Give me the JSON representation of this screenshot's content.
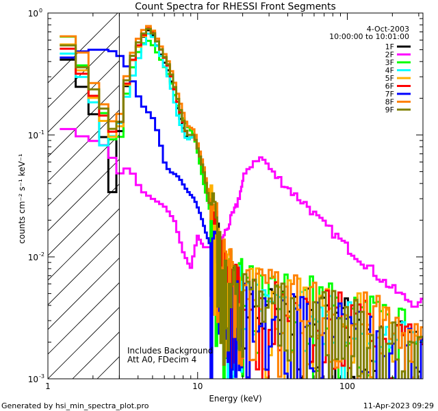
{
  "chart_data": {
    "type": "line",
    "title": "Count Spectra for RHESSI Front Segments",
    "xlabel": "Energy (keV)",
    "ylabel": "counts cm⁻² s⁻¹ keV⁻¹",
    "xscale": "log",
    "yscale": "log",
    "xlim": [
      1,
      320
    ],
    "ylim": [
      0.001,
      1.0
    ],
    "x_tick_labels": [
      {
        "v": 1,
        "t": "1"
      },
      {
        "v": 10,
        "t": "10"
      },
      {
        "v": 100,
        "t": "100"
      }
    ],
    "y_tick_labels": [
      {
        "v": 1,
        "t": "10",
        "e": "0"
      },
      {
        "v": 0.1,
        "t": "10",
        "e": "-1"
      },
      {
        "v": 0.01,
        "t": "10",
        "e": "-2"
      },
      {
        "v": 0.001,
        "t": "10",
        "e": "-3"
      }
    ],
    "date": "4-Oct-2003",
    "time_range": "10:00:00 to 10:01:00",
    "hatch_region": [
      1,
      3
    ],
    "annotations": [
      "Includes Background",
      "Att A0, FDecim 4"
    ],
    "legend_position": "top-right",
    "series": [
      {
        "name": "1F",
        "color": "#000000",
        "points": [
          [
            1.3,
            0.45
          ],
          [
            1.6,
            0.3
          ],
          [
            1.8,
            0.2
          ],
          [
            2.2,
            0.12
          ],
          [
            2.5,
            0.08
          ],
          [
            2.7,
            0.033
          ],
          [
            3.0,
            0.1
          ],
          [
            3.5,
            0.35
          ],
          [
            4.2,
            0.6
          ],
          [
            4.8,
            0.75
          ],
          [
            5.5,
            0.5
          ],
          [
            6.5,
            0.32
          ],
          [
            7.5,
            0.15
          ],
          [
            8.5,
            0.09
          ],
          [
            9.5,
            0.1
          ],
          [
            11,
            0.05
          ],
          [
            12,
            0.028
          ],
          [
            13.5,
            0.015
          ],
          [
            15,
            0.006
          ],
          [
            18,
            0.005
          ],
          [
            22,
            0.004
          ],
          [
            28,
            0.0035
          ],
          [
            35,
            0.003
          ],
          [
            45,
            0.0032
          ],
          [
            60,
            0.003
          ],
          [
            75,
            0.0028
          ],
          [
            90,
            0.003
          ],
          [
            120,
            0.0025
          ],
          [
            150,
            0.0022
          ],
          [
            200,
            0.0018
          ],
          [
            260,
            0.0015
          ],
          [
            310,
            0.0015
          ]
        ],
        "noise": true
      },
      {
        "name": "2F",
        "color": "#ff00ff",
        "points": [
          [
            1.3,
            0.115
          ],
          [
            1.6,
            0.1
          ],
          [
            2.0,
            0.09
          ],
          [
            2.5,
            0.08
          ],
          [
            3.0,
            0.048
          ],
          [
            3.5,
            0.055
          ],
          [
            4.2,
            0.035
          ],
          [
            5.0,
            0.03
          ],
          [
            6.0,
            0.026
          ],
          [
            7.0,
            0.02
          ],
          [
            8.0,
            0.011
          ],
          [
            9.0,
            0.008
          ],
          [
            10,
            0.015
          ],
          [
            11,
            0.012
          ],
          [
            13,
            0.012
          ],
          [
            15,
            0.015
          ],
          [
            18,
            0.025
          ],
          [
            20,
            0.04
          ],
          [
            22,
            0.055
          ],
          [
            25,
            0.065
          ],
          [
            28,
            0.062
          ],
          [
            32,
            0.048
          ],
          [
            38,
            0.04
          ],
          [
            45,
            0.032
          ],
          [
            55,
            0.026
          ],
          [
            65,
            0.02
          ],
          [
            80,
            0.016
          ],
          [
            100,
            0.012
          ],
          [
            130,
            0.009
          ],
          [
            160,
            0.007
          ],
          [
            200,
            0.0055
          ],
          [
            250,
            0.0045
          ],
          [
            300,
            0.004
          ],
          [
            320,
            0.0042
          ]
        ],
        "noise": false
      },
      {
        "name": "3F",
        "color": "#00ff00",
        "points": [
          [
            1.3,
            0.7
          ],
          [
            1.6,
            0.45
          ],
          [
            1.8,
            0.3
          ],
          [
            2.2,
            0.2
          ],
          [
            2.5,
            0.12
          ],
          [
            2.8,
            0.08
          ],
          [
            3.0,
            0.09
          ],
          [
            3.5,
            0.3
          ],
          [
            4.2,
            0.55
          ],
          [
            4.8,
            0.6
          ],
          [
            5.5,
            0.45
          ],
          [
            6.5,
            0.3
          ],
          [
            7.5,
            0.16
          ],
          [
            8.5,
            0.12
          ],
          [
            9.5,
            0.1
          ],
          [
            11,
            0.04
          ],
          [
            12,
            0.025
          ],
          [
            13.5,
            0.015
          ],
          [
            15,
            0.007
          ],
          [
            18,
            0.006
          ],
          [
            22,
            0.005
          ],
          [
            28,
            0.004
          ],
          [
            35,
            0.0045
          ],
          [
            45,
            0.0042
          ],
          [
            60,
            0.004
          ],
          [
            75,
            0.0035
          ],
          [
            90,
            0.0035
          ],
          [
            120,
            0.003
          ],
          [
            150,
            0.0028
          ],
          [
            200,
            0.0024
          ],
          [
            260,
            0.002
          ],
          [
            310,
            0.002
          ]
        ],
        "noise": true
      },
      {
        "name": "4F",
        "color": "#00ffff",
        "points": [
          [
            1.3,
            0.5
          ],
          [
            1.6,
            0.35
          ],
          [
            1.8,
            0.25
          ],
          [
            2.2,
            0.15
          ],
          [
            2.5,
            0.05
          ],
          [
            2.7,
            0.1
          ],
          [
            3.0,
            0.12
          ],
          [
            3.5,
            0.25
          ],
          [
            4.2,
            0.5
          ],
          [
            4.8,
            0.72
          ],
          [
            5.5,
            0.5
          ],
          [
            6.5,
            0.28
          ],
          [
            7.5,
            0.13
          ],
          [
            8.5,
            0.09
          ],
          [
            9.5,
            0.1
          ],
          [
            11,
            0.05
          ],
          [
            12,
            0.028
          ],
          [
            13.5,
            0.012
          ],
          [
            15,
            0.006
          ],
          [
            18,
            0.005
          ],
          [
            22,
            0.004
          ],
          [
            28,
            0.0035
          ],
          [
            35,
            0.003
          ],
          [
            45,
            0.0034
          ],
          [
            60,
            0.003
          ],
          [
            75,
            0.0028
          ],
          [
            90,
            0.0028
          ],
          [
            120,
            0.0025
          ],
          [
            150,
            0.0022
          ],
          [
            200,
            0.0018
          ],
          [
            260,
            0.0016
          ],
          [
            310,
            0.0014
          ]
        ],
        "noise": true
      },
      {
        "name": "5F",
        "color": "#ffb000",
        "points": [
          [
            1.3,
            0.6
          ],
          [
            1.6,
            0.4
          ],
          [
            1.8,
            0.28
          ],
          [
            2.2,
            0.16
          ],
          [
            2.5,
            0.11
          ],
          [
            2.8,
            0.09
          ],
          [
            3.0,
            0.11
          ],
          [
            3.5,
            0.35
          ],
          [
            4.2,
            0.6
          ],
          [
            4.8,
            0.78
          ],
          [
            5.5,
            0.55
          ],
          [
            6.5,
            0.35
          ],
          [
            7.5,
            0.18
          ],
          [
            8.5,
            0.1
          ],
          [
            9.5,
            0.1
          ],
          [
            11,
            0.05
          ],
          [
            12,
            0.03
          ],
          [
            13.5,
            0.016
          ],
          [
            15,
            0.007
          ],
          [
            18,
            0.006
          ],
          [
            22,
            0.005
          ],
          [
            28,
            0.0042
          ],
          [
            35,
            0.004
          ],
          [
            45,
            0.0038
          ],
          [
            60,
            0.0035
          ],
          [
            75,
            0.0032
          ],
          [
            90,
            0.003
          ],
          [
            120,
            0.0028
          ],
          [
            150,
            0.0025
          ],
          [
            200,
            0.0022
          ],
          [
            260,
            0.0018
          ],
          [
            310,
            0.0016
          ]
        ],
        "noise": true
      },
      {
        "name": "6F",
        "color": "#ff0000",
        "points": [
          [
            1.3,
            0.55
          ],
          [
            1.6,
            0.38
          ],
          [
            1.8,
            0.26
          ],
          [
            2.2,
            0.18
          ],
          [
            2.5,
            0.12
          ],
          [
            2.8,
            0.1
          ],
          [
            3.0,
            0.12
          ],
          [
            3.5,
            0.35
          ],
          [
            4.2,
            0.62
          ],
          [
            4.8,
            0.78
          ],
          [
            5.5,
            0.55
          ],
          [
            6.5,
            0.35
          ],
          [
            7.5,
            0.17
          ],
          [
            8.5,
            0.1
          ],
          [
            9.5,
            0.1
          ],
          [
            11,
            0.05
          ],
          [
            12,
            0.028
          ],
          [
            13.5,
            0.014
          ],
          [
            15,
            0.007
          ],
          [
            18,
            0.005
          ],
          [
            22,
            0.0045
          ],
          [
            28,
            0.004
          ],
          [
            35,
            0.0038
          ],
          [
            45,
            0.0035
          ],
          [
            60,
            0.0032
          ],
          [
            75,
            0.003
          ],
          [
            90,
            0.003
          ],
          [
            120,
            0.0026
          ],
          [
            150,
            0.0024
          ],
          [
            200,
            0.002
          ],
          [
            260,
            0.0017
          ],
          [
            310,
            0.0015
          ]
        ],
        "noise": true
      },
      {
        "name": "7F",
        "color": "#0000ff",
        "points": [
          [
            1.3,
            0.42
          ],
          [
            1.6,
            0.48
          ],
          [
            2.0,
            0.5
          ],
          [
            2.5,
            0.5
          ],
          [
            2.8,
            0.48
          ],
          [
            3.2,
            0.42
          ],
          [
            3.6,
            0.3
          ],
          [
            4.2,
            0.18
          ],
          [
            5.0,
            0.14
          ],
          [
            5.5,
            0.1
          ],
          [
            6.0,
            0.06
          ],
          [
            6.5,
            0.05
          ],
          [
            7.0,
            0.048
          ],
          [
            7.5,
            0.045
          ],
          [
            8.5,
            0.035
          ],
          [
            9.5,
            0.03
          ],
          [
            10.5,
            0.022
          ],
          [
            11.5,
            0.015
          ],
          [
            13,
            0.01
          ],
          [
            15,
            0.006
          ],
          [
            18,
            0.004
          ],
          [
            22,
            0.0035
          ],
          [
            28,
            0.003
          ],
          [
            35,
            0.0028
          ],
          [
            45,
            0.003
          ],
          [
            60,
            0.0028
          ],
          [
            75,
            0.0025
          ],
          [
            90,
            0.0025
          ],
          [
            120,
            0.0022
          ],
          [
            150,
            0.002
          ],
          [
            200,
            0.0017
          ],
          [
            260,
            0.0015
          ],
          [
            310,
            0.0014
          ]
        ],
        "noise": true
      },
      {
        "name": "8F",
        "color": "#ff8000",
        "points": [
          [
            1.3,
            0.65
          ],
          [
            1.6,
            0.62
          ],
          [
            1.8,
            0.35
          ],
          [
            2.2,
            0.22
          ],
          [
            2.5,
            0.15
          ],
          [
            2.8,
            0.12
          ],
          [
            3.0,
            0.14
          ],
          [
            3.5,
            0.4
          ],
          [
            4.2,
            0.7
          ],
          [
            4.8,
            0.8
          ],
          [
            5.5,
            0.58
          ],
          [
            6.5,
            0.38
          ],
          [
            7.5,
            0.2
          ],
          [
            8.5,
            0.12
          ],
          [
            9.5,
            0.11
          ],
          [
            11,
            0.055
          ],
          [
            12,
            0.03
          ],
          [
            13.5,
            0.016
          ],
          [
            15,
            0.008
          ],
          [
            18,
            0.006
          ],
          [
            22,
            0.005
          ],
          [
            28,
            0.0045
          ],
          [
            35,
            0.0042
          ],
          [
            45,
            0.004
          ],
          [
            60,
            0.0038
          ],
          [
            75,
            0.0035
          ],
          [
            90,
            0.0032
          ],
          [
            120,
            0.003
          ],
          [
            150,
            0.0028
          ],
          [
            200,
            0.0024
          ],
          [
            260,
            0.002
          ],
          [
            310,
            0.0018
          ]
        ],
        "noise": true
      },
      {
        "name": "9F",
        "color": "#808000",
        "points": [
          [
            1.3,
            0.58
          ],
          [
            1.6,
            0.42
          ],
          [
            1.8,
            0.3
          ],
          [
            2.2,
            0.2
          ],
          [
            2.5,
            0.14
          ],
          [
            2.8,
            0.1
          ],
          [
            3.0,
            0.12
          ],
          [
            3.5,
            0.38
          ],
          [
            4.2,
            0.65
          ],
          [
            4.8,
            0.76
          ],
          [
            5.5,
            0.55
          ],
          [
            6.5,
            0.36
          ],
          [
            7.5,
            0.18
          ],
          [
            8.5,
            0.1
          ],
          [
            9.5,
            0.1
          ],
          [
            11,
            0.05
          ],
          [
            12,
            0.028
          ],
          [
            13.5,
            0.014
          ],
          [
            15,
            0.006
          ],
          [
            18,
            0.005
          ],
          [
            22,
            0.0042
          ],
          [
            28,
            0.0038
          ],
          [
            35,
            0.0035
          ],
          [
            45,
            0.0035
          ],
          [
            60,
            0.0032
          ],
          [
            75,
            0.003
          ],
          [
            90,
            0.0028
          ],
          [
            120,
            0.0026
          ],
          [
            150,
            0.0023
          ],
          [
            200,
            0.002
          ],
          [
            260,
            0.0017
          ],
          [
            310,
            0.0015
          ]
        ],
        "noise": true
      }
    ]
  },
  "footer": {
    "left": "Generated by hsi_min_spectra_plot.pro",
    "right": "11-Apr-2023 09:29"
  }
}
